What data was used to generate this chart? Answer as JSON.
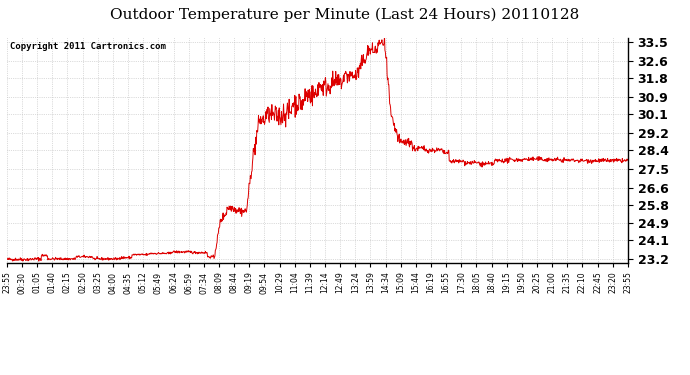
{
  "title": "Outdoor Temperature per Minute (Last 24 Hours) 20110128",
  "copyright": "Copyright 2011 Cartronics.com",
  "y_ticks": [
    23.2,
    24.1,
    24.9,
    25.8,
    26.6,
    27.5,
    28.4,
    29.2,
    30.1,
    30.9,
    31.8,
    32.6,
    33.5
  ],
  "ylim": [
    23.05,
    33.72
  ],
  "x_tick_labels": [
    "23:55",
    "00:30",
    "01:05",
    "01:40",
    "02:15",
    "02:50",
    "03:25",
    "04:00",
    "04:35",
    "05:12",
    "05:49",
    "06:24",
    "06:59",
    "07:34",
    "08:09",
    "08:44",
    "09:19",
    "09:54",
    "10:29",
    "11:04",
    "11:39",
    "12:14",
    "12:49",
    "13:24",
    "13:59",
    "14:34",
    "15:09",
    "15:44",
    "16:19",
    "16:55",
    "17:30",
    "18:05",
    "18:40",
    "19:15",
    "19:50",
    "20:25",
    "21:00",
    "21:35",
    "22:10",
    "22:45",
    "23:20",
    "23:55"
  ],
  "line_color": "#dd0000",
  "bg_color": "#ffffff",
  "grid_color": "#bbbbbb",
  "title_fontsize": 11,
  "copyright_fontsize": 6.5,
  "ytick_fontsize": 9,
  "xtick_fontsize": 5.5
}
